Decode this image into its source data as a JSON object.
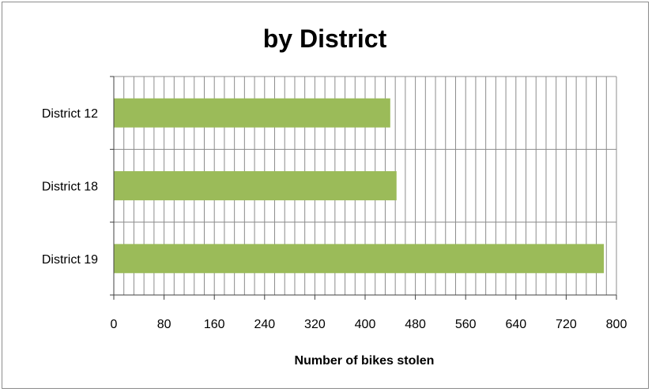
{
  "chart_data": {
    "type": "bar",
    "orientation": "horizontal",
    "title": "by District",
    "xlabel": "Number of bikes stolen",
    "ylabel": "",
    "categories": [
      "District 12",
      "District 18",
      "District 19"
    ],
    "values": [
      440,
      450,
      780
    ],
    "xlim": [
      0,
      800
    ],
    "x_ticks": [
      0,
      80,
      160,
      240,
      320,
      400,
      480,
      560,
      640,
      720,
      800
    ],
    "minor_step": 16,
    "grid": true,
    "legend": "none",
    "colors": {
      "bar": "#9bbb59",
      "grid": "#8c8c8c",
      "axis": "#404040"
    }
  }
}
